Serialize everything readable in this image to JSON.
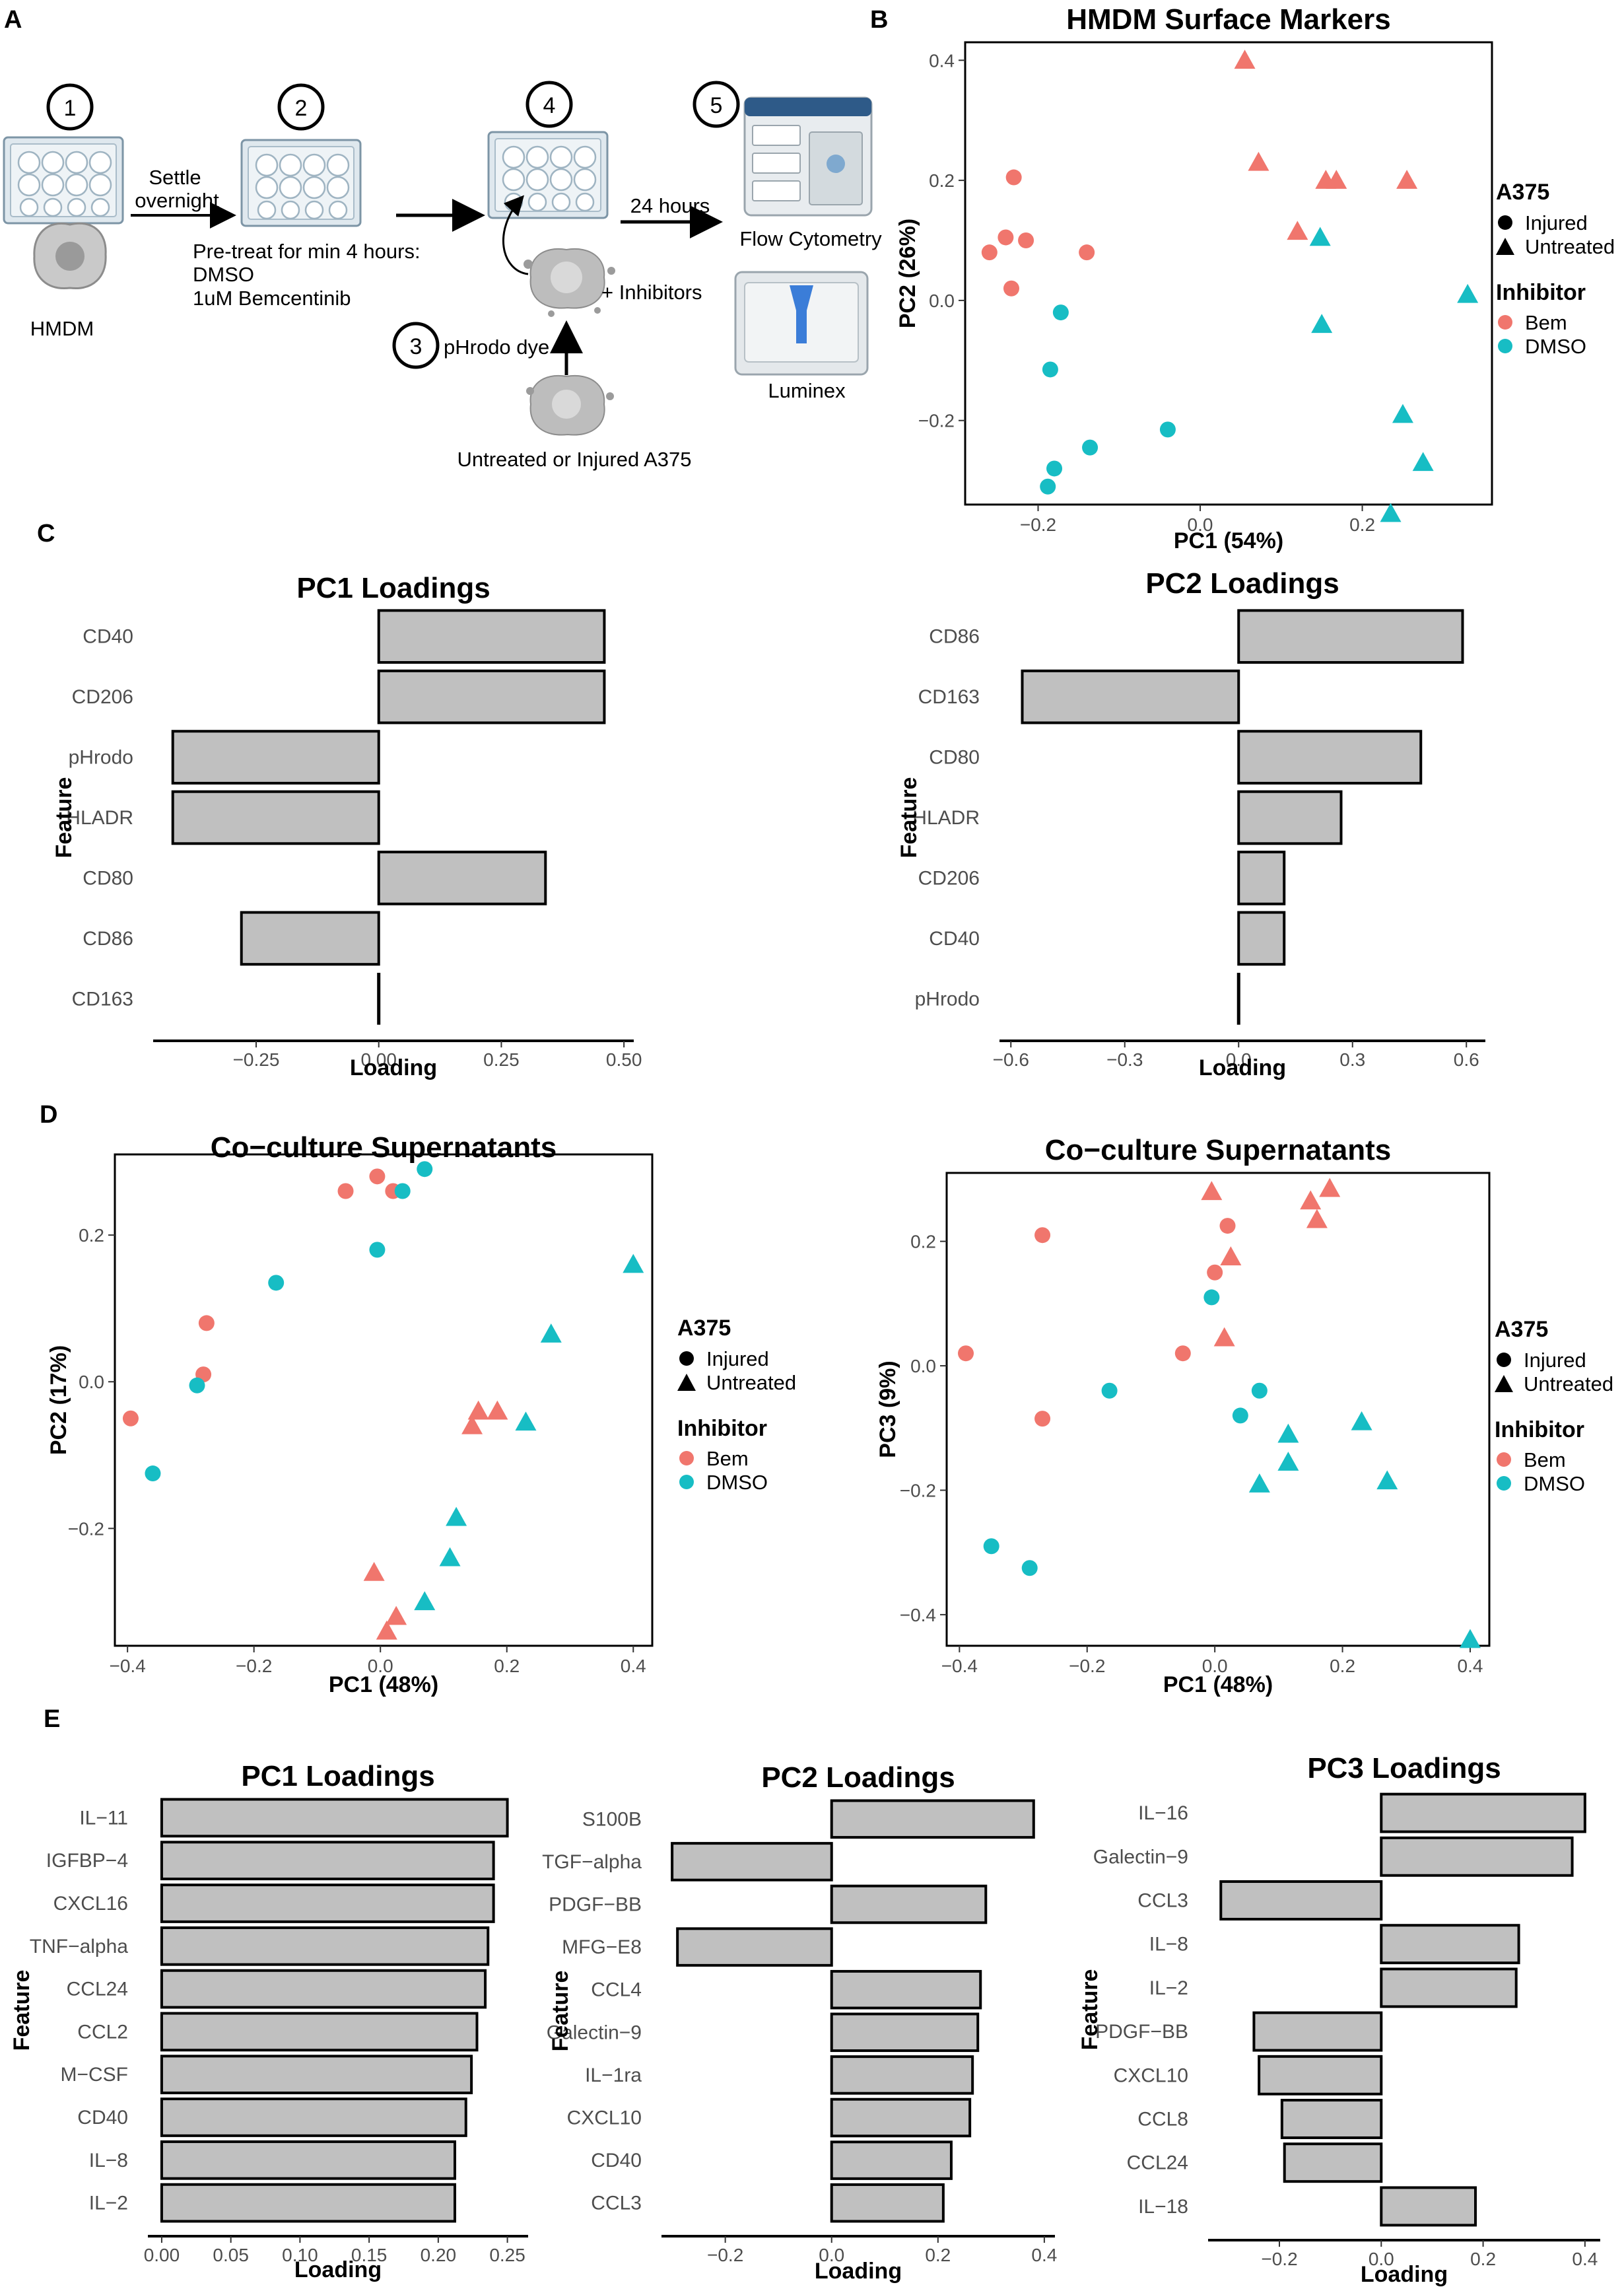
{
  "panels": {
    "A": "A",
    "B": "B",
    "C": "C",
    "D": "D",
    "E": "E"
  },
  "colors": {
    "bem": "#F0766D",
    "dmso": "#17BDC4",
    "bar_fill": "#C0C0C0",
    "bar_stroke": "#000000"
  },
  "schematic": {
    "steps": [
      "1",
      "2",
      "3",
      "4",
      "5"
    ],
    "hmdm": "HMDM",
    "settle_line1": "Settle",
    "settle_line2": "overnight",
    "pretreat_line1": "Pre-treat for min 4 hours:",
    "pretreat_line2": "DMSO",
    "pretreat_line3": "1uM Bemcentinib",
    "plus_inhibitors": "+ Inhibitors",
    "phrodo_dye": "pHrodo dye",
    "a375_label": "Untreated or Injured A375",
    "hours": "24 hours",
    "flow": "Flow Cytometry",
    "luminex": "Luminex"
  },
  "legend": {
    "shape_title": "A375",
    "injured": "Injured",
    "untreated": "Untreated",
    "color_title": "Inhibitor",
    "bem": "Bem",
    "dmso": "DMSO"
  },
  "chart_data": [
    {
      "id": "B",
      "type": "scatter",
      "title": "HMDM Surface Markers",
      "xlabel": "PC1 (54%)",
      "ylabel": "PC2 (26%)",
      "xlim": [
        -0.29,
        0.36
      ],
      "ylim": [
        -0.34,
        0.43
      ],
      "xticks": [
        -0.2,
        0.0,
        0.2
      ],
      "xtick_labels": [
        "−0.2",
        "0.0",
        "0.2"
      ],
      "yticks": [
        -0.2,
        0.0,
        0.2,
        0.4
      ],
      "ytick_labels": [
        "−0.2",
        "0.0",
        "0.2",
        "0.4"
      ],
      "points": [
        {
          "x": 0.055,
          "y": 0.4,
          "group": "Bem",
          "shape": "Untreated"
        },
        {
          "x": 0.072,
          "y": 0.23,
          "group": "Bem",
          "shape": "Untreated"
        },
        {
          "x": 0.155,
          "y": 0.2,
          "group": "Bem",
          "shape": "Untreated"
        },
        {
          "x": 0.168,
          "y": 0.2,
          "group": "Bem",
          "shape": "Untreated"
        },
        {
          "x": 0.255,
          "y": 0.2,
          "group": "Bem",
          "shape": "Untreated"
        },
        {
          "x": 0.12,
          "y": 0.115,
          "group": "Bem",
          "shape": "Untreated"
        },
        {
          "x": 0.148,
          "y": 0.105,
          "group": "DMSO",
          "shape": "Untreated"
        },
        {
          "x": 0.15,
          "y": -0.04,
          "group": "DMSO",
          "shape": "Untreated"
        },
        {
          "x": 0.33,
          "y": 0.01,
          "group": "DMSO",
          "shape": "Untreated"
        },
        {
          "x": 0.25,
          "y": -0.19,
          "group": "DMSO",
          "shape": "Untreated"
        },
        {
          "x": 0.275,
          "y": -0.27,
          "group": "DMSO",
          "shape": "Untreated"
        },
        {
          "x": 0.235,
          "y": -0.355,
          "group": "DMSO",
          "shape": "Untreated"
        },
        {
          "x": -0.23,
          "y": 0.205,
          "group": "Bem",
          "shape": "Injured"
        },
        {
          "x": -0.26,
          "y": 0.08,
          "group": "Bem",
          "shape": "Injured"
        },
        {
          "x": -0.24,
          "y": 0.105,
          "group": "Bem",
          "shape": "Injured"
        },
        {
          "x": -0.215,
          "y": 0.1,
          "group": "Bem",
          "shape": "Injured"
        },
        {
          "x": -0.233,
          "y": 0.02,
          "group": "Bem",
          "shape": "Injured"
        },
        {
          "x": -0.14,
          "y": 0.08,
          "group": "Bem",
          "shape": "Injured"
        },
        {
          "x": -0.172,
          "y": -0.02,
          "group": "DMSO",
          "shape": "Injured"
        },
        {
          "x": -0.185,
          "y": -0.115,
          "group": "DMSO",
          "shape": "Injured"
        },
        {
          "x": -0.04,
          "y": -0.215,
          "group": "DMSO",
          "shape": "Injured"
        },
        {
          "x": -0.136,
          "y": -0.245,
          "group": "DMSO",
          "shape": "Injured"
        },
        {
          "x": -0.18,
          "y": -0.28,
          "group": "DMSO",
          "shape": "Injured"
        },
        {
          "x": -0.188,
          "y": -0.31,
          "group": "DMSO",
          "shape": "Injured"
        }
      ]
    },
    {
      "id": "C1",
      "type": "bar",
      "title": "PC1 Loadings",
      "xlabel": "Loading",
      "ylabel": "Feature",
      "categories": [
        "CD40",
        "CD206",
        "pHrodo",
        "HLADR",
        "CD80",
        "CD86",
        "CD163"
      ],
      "values": [
        0.46,
        0.46,
        -0.42,
        -0.42,
        0.34,
        -0.28,
        0.0
      ],
      "xlim": [
        -0.46,
        0.52
      ],
      "xticks": [
        -0.25,
        0.0,
        0.25,
        0.5
      ],
      "xtick_labels": [
        "−0.25",
        "0.00",
        "0.25",
        "0.50"
      ]
    },
    {
      "id": "C2",
      "type": "bar",
      "title": "PC2 Loadings",
      "xlabel": "Loading",
      "ylabel": "Feature",
      "categories": [
        "CD86",
        "CD163",
        "CD80",
        "HLADR",
        "CD206",
        "CD40",
        "pHrodo"
      ],
      "values": [
        0.59,
        -0.57,
        0.48,
        0.27,
        0.12,
        0.12,
        0.0
      ],
      "xlim": [
        -0.63,
        0.65
      ],
      "xticks": [
        -0.6,
        -0.3,
        0.0,
        0.3,
        0.6
      ],
      "xtick_labels": [
        "−0.6",
        "−0.3",
        "0.0",
        "0.3",
        "0.6"
      ]
    },
    {
      "id": "D1",
      "type": "scatter",
      "title": "Co−culture Supernatants",
      "xlabel": "PC1 (48%)",
      "ylabel": "PC2 (17%)",
      "xlim": [
        -0.42,
        0.43
      ],
      "ylim": [
        -0.36,
        0.31
      ],
      "xticks": [
        -0.4,
        -0.2,
        0.0,
        0.2,
        0.4
      ],
      "xtick_labels": [
        "−0.4",
        "−0.2",
        "0.0",
        "0.2",
        "0.4"
      ],
      "yticks": [
        -0.2,
        0.0,
        0.2
      ],
      "ytick_labels": [
        "−0.2",
        "0.0",
        "0.2"
      ],
      "points": [
        {
          "x": 0.4,
          "y": 0.16,
          "group": "DMSO",
          "shape": "Untreated"
        },
        {
          "x": 0.27,
          "y": 0.065,
          "group": "DMSO",
          "shape": "Untreated"
        },
        {
          "x": 0.23,
          "y": -0.055,
          "group": "DMSO",
          "shape": "Untreated"
        },
        {
          "x": 0.155,
          "y": -0.04,
          "group": "Bem",
          "shape": "Untreated"
        },
        {
          "x": 0.185,
          "y": -0.04,
          "group": "Bem",
          "shape": "Untreated"
        },
        {
          "x": 0.145,
          "y": -0.06,
          "group": "Bem",
          "shape": "Untreated"
        },
        {
          "x": 0.12,
          "y": -0.185,
          "group": "DMSO",
          "shape": "Untreated"
        },
        {
          "x": 0.11,
          "y": -0.24,
          "group": "DMSO",
          "shape": "Untreated"
        },
        {
          "x": 0.07,
          "y": -0.3,
          "group": "DMSO",
          "shape": "Untreated"
        },
        {
          "x": -0.01,
          "y": -0.26,
          "group": "Bem",
          "shape": "Untreated"
        },
        {
          "x": 0.025,
          "y": -0.32,
          "group": "Bem",
          "shape": "Untreated"
        },
        {
          "x": 0.01,
          "y": -0.34,
          "group": "Bem",
          "shape": "Untreated"
        },
        {
          "x": -0.055,
          "y": 0.26,
          "group": "Bem",
          "shape": "Injured"
        },
        {
          "x": -0.005,
          "y": 0.28,
          "group": "Bem",
          "shape": "Injured"
        },
        {
          "x": 0.02,
          "y": 0.26,
          "group": "Bem",
          "shape": "Injured"
        },
        {
          "x": 0.035,
          "y": 0.26,
          "group": "DMSO",
          "shape": "Injured"
        },
        {
          "x": 0.07,
          "y": 0.29,
          "group": "DMSO",
          "shape": "Injured"
        },
        {
          "x": -0.005,
          "y": 0.18,
          "group": "DMSO",
          "shape": "Injured"
        },
        {
          "x": -0.165,
          "y": 0.135,
          "group": "DMSO",
          "shape": "Injured"
        },
        {
          "x": -0.275,
          "y": 0.08,
          "group": "Bem",
          "shape": "Injured"
        },
        {
          "x": -0.28,
          "y": 0.01,
          "group": "Bem",
          "shape": "Injured"
        },
        {
          "x": -0.29,
          "y": -0.005,
          "group": "DMSO",
          "shape": "Injured"
        },
        {
          "x": -0.395,
          "y": -0.05,
          "group": "Bem",
          "shape": "Injured"
        },
        {
          "x": -0.36,
          "y": -0.125,
          "group": "DMSO",
          "shape": "Injured"
        }
      ]
    },
    {
      "id": "D2",
      "type": "scatter",
      "title": "Co−culture Supernatants",
      "xlabel": "PC1 (48%)",
      "ylabel": "PC3 (9%)",
      "xlim": [
        -0.42,
        0.43
      ],
      "ylim": [
        -0.45,
        0.31
      ],
      "xticks": [
        -0.4,
        -0.2,
        0.0,
        0.2,
        0.4
      ],
      "xtick_labels": [
        "−0.4",
        "−0.2",
        "0.0",
        "0.2",
        "0.4"
      ],
      "yticks": [
        -0.4,
        -0.2,
        0.0,
        0.2
      ],
      "ytick_labels": [
        "−0.4",
        "−0.2",
        "0.0",
        "0.2"
      ],
      "points": [
        {
          "x": -0.005,
          "y": 0.28,
          "group": "Bem",
          "shape": "Untreated"
        },
        {
          "x": 0.15,
          "y": 0.265,
          "group": "Bem",
          "shape": "Untreated"
        },
        {
          "x": 0.18,
          "y": 0.285,
          "group": "Bem",
          "shape": "Untreated"
        },
        {
          "x": 0.16,
          "y": 0.235,
          "group": "Bem",
          "shape": "Untreated"
        },
        {
          "x": 0.025,
          "y": 0.175,
          "group": "Bem",
          "shape": "Untreated"
        },
        {
          "x": 0.015,
          "y": 0.045,
          "group": "Bem",
          "shape": "Untreated"
        },
        {
          "x": 0.115,
          "y": -0.11,
          "group": "DMSO",
          "shape": "Untreated"
        },
        {
          "x": 0.23,
          "y": -0.09,
          "group": "DMSO",
          "shape": "Untreated"
        },
        {
          "x": 0.115,
          "y": -0.155,
          "group": "DMSO",
          "shape": "Untreated"
        },
        {
          "x": 0.07,
          "y": -0.19,
          "group": "DMSO",
          "shape": "Untreated"
        },
        {
          "x": 0.27,
          "y": -0.185,
          "group": "DMSO",
          "shape": "Untreated"
        },
        {
          "x": 0.4,
          "y": -0.44,
          "group": "DMSO",
          "shape": "Untreated"
        },
        {
          "x": 0.02,
          "y": 0.225,
          "group": "Bem",
          "shape": "Injured"
        },
        {
          "x": -0.27,
          "y": 0.21,
          "group": "Bem",
          "shape": "Injured"
        },
        {
          "x": 0.0,
          "y": 0.15,
          "group": "Bem",
          "shape": "Injured"
        },
        {
          "x": -0.005,
          "y": 0.11,
          "group": "DMSO",
          "shape": "Injured"
        },
        {
          "x": -0.05,
          "y": 0.02,
          "group": "Bem",
          "shape": "Injured"
        },
        {
          "x": -0.39,
          "y": 0.02,
          "group": "Bem",
          "shape": "Injured"
        },
        {
          "x": -0.27,
          "y": -0.085,
          "group": "Bem",
          "shape": "Injured"
        },
        {
          "x": -0.165,
          "y": -0.04,
          "group": "DMSO",
          "shape": "Injured"
        },
        {
          "x": 0.07,
          "y": -0.04,
          "group": "DMSO",
          "shape": "Injured"
        },
        {
          "x": 0.04,
          "y": -0.08,
          "group": "DMSO",
          "shape": "Injured"
        },
        {
          "x": -0.35,
          "y": -0.29,
          "group": "DMSO",
          "shape": "Injured"
        },
        {
          "x": -0.29,
          "y": -0.325,
          "group": "DMSO",
          "shape": "Injured"
        }
      ]
    },
    {
      "id": "E1",
      "type": "bar",
      "title": "PC1 Loadings",
      "xlabel": "Loading",
      "ylabel": "Feature",
      "categories": [
        "IL−11",
        "IGFBP−4",
        "CXCL16",
        "TNF−alpha",
        "CCL24",
        "CCL2",
        "M−CSF",
        "CD40",
        "IL−8",
        "IL−2"
      ],
      "values": [
        0.25,
        0.24,
        0.24,
        0.236,
        0.234,
        0.228,
        0.224,
        0.22,
        0.212,
        0.212
      ],
      "xlim": [
        -0.01,
        0.265
      ],
      "xticks": [
        0.0,
        0.05,
        0.1,
        0.15,
        0.2,
        0.25
      ],
      "xtick_labels": [
        "0.00",
        "0.05",
        "0.10",
        "0.15",
        "0.20",
        "0.25"
      ]
    },
    {
      "id": "E2",
      "type": "bar",
      "title": "PC2 Loadings",
      "xlabel": "Loading",
      "ylabel": "Feature",
      "categories": [
        "S100B",
        "TGF−alpha",
        "PDGF−BB",
        "MFG−E8",
        "CCL4",
        "Galectin−9",
        "IL−1ra",
        "CXCL10",
        "CD40",
        "CCL3"
      ],
      "values": [
        0.38,
        -0.3,
        0.29,
        -0.29,
        0.28,
        0.275,
        0.265,
        0.26,
        0.225,
        0.21
      ],
      "xlim": [
        -0.32,
        0.42
      ],
      "xticks": [
        -0.2,
        0.0,
        0.2,
        0.4
      ],
      "xtick_labels": [
        "−0.2",
        "0.0",
        "0.2",
        "0.4"
      ]
    },
    {
      "id": "E3",
      "type": "bar",
      "title": "PC3 Loadings",
      "xlabel": "Loading",
      "ylabel": "Feature",
      "categories": [
        "IL−16",
        "Galectin−9",
        "CCL3",
        "IL−8",
        "IL−2",
        "PDGF−BB",
        "CXCL10",
        "CCL8",
        "CCL24",
        "IL−18"
      ],
      "values": [
        0.4,
        0.375,
        -0.315,
        0.27,
        0.265,
        -0.25,
        -0.24,
        -0.195,
        -0.19,
        0.185
      ],
      "xlim": [
        -0.34,
        0.43
      ],
      "xticks": [
        -0.2,
        0.0,
        0.2,
        0.4
      ],
      "xtick_labels": [
        "−0.2",
        "0.0",
        "0.2",
        "0.4"
      ]
    }
  ]
}
